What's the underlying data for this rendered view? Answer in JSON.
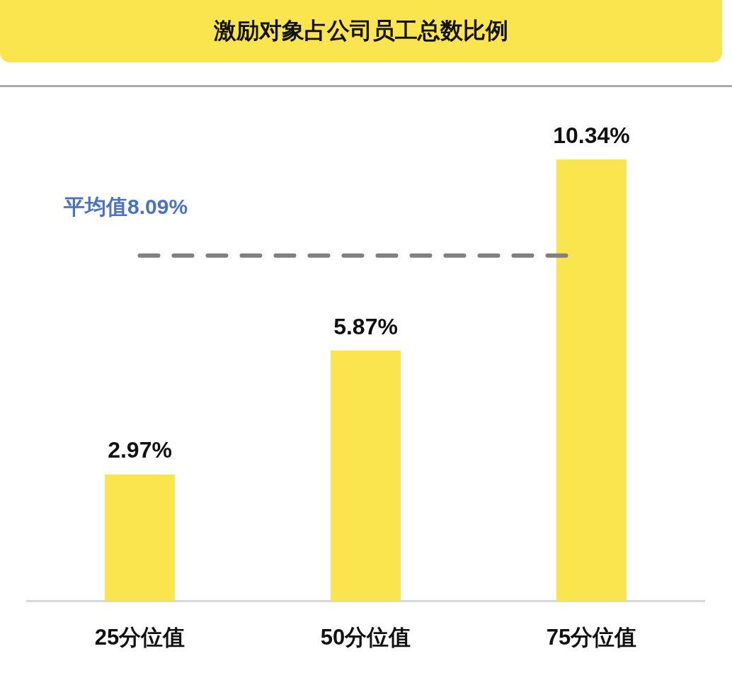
{
  "chart_data": {
    "type": "bar",
    "title": "激励对象占公司员工总数比例",
    "categories": [
      "25分位值",
      "50分位值",
      "75分位值"
    ],
    "values": [
      2.97,
      5.87,
      10.34
    ],
    "value_labels": [
      "2.97%",
      "5.87%",
      "10.34%"
    ],
    "color": "#fae54e",
    "ref_lines": [
      {
        "axis": "y",
        "value": 8.09,
        "label": "平均值8.09%",
        "color": "#808080",
        "line_style": "dashed"
      }
    ],
    "grid": false,
    "legend": false
  }
}
